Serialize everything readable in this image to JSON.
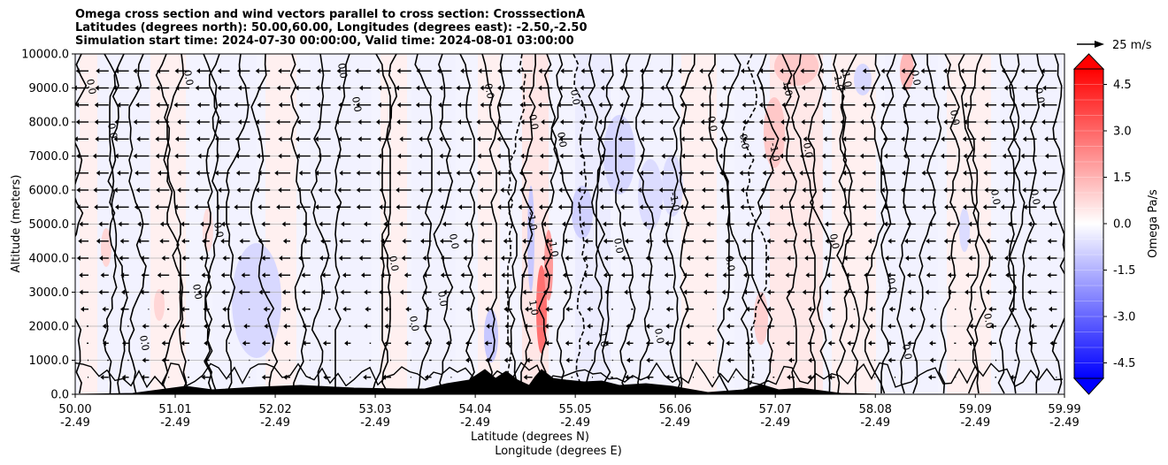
{
  "chart_data": {
    "type": "heatmap",
    "title_lines": [
      "Omega cross section and wind vectors parallel to cross section: CrosssectionA",
      "Latitudes (degrees north): 50.00,60.00, Longitudes (degrees east): -2.50,-2.50",
      "Simulation start time: 2024-07-30 00:00:00, Valid time: 2024-08-01 03:00:00"
    ],
    "ylabel": "Altitude (meters)",
    "xlabel_lat": "Latitude (degrees N)",
    "xlabel_lon": "Longitude (degrees E)",
    "ylim": [
      0,
      10000
    ],
    "xlim": [
      50.0,
      59.99
    ],
    "yticks": [
      "0.0",
      "1000.0",
      "2000.0",
      "3000.0",
      "4000.0",
      "5000.0",
      "6000.0",
      "7000.0",
      "8000.0",
      "9000.0",
      "10000.0"
    ],
    "ytick_values": [
      0,
      1000,
      2000,
      3000,
      4000,
      5000,
      6000,
      7000,
      8000,
      9000,
      10000
    ],
    "xtick_values": [
      50.0,
      51.01,
      52.02,
      53.03,
      54.04,
      55.05,
      56.06,
      57.07,
      58.08,
      59.09,
      59.99
    ],
    "xticks_lat": [
      "50.00",
      "51.01",
      "52.02",
      "53.03",
      "54.04",
      "55.05",
      "56.06",
      "57.07",
      "58.08",
      "59.09",
      "59.99"
    ],
    "xticks_lon": [
      "-2.49",
      "-2.49",
      "-2.49",
      "-2.49",
      "-2.49",
      "-2.49",
      "-2.49",
      "-2.49",
      "-2.49",
      "-2.49",
      "-2.49"
    ],
    "grid": "horizontal",
    "colorbar": {
      "label": "Omega Pa/s",
      "range": [
        -5.0,
        5.0
      ],
      "ticks": [
        "-4.5",
        "-3.0",
        "-1.5",
        "0.0",
        "1.5",
        "3.0",
        "4.5"
      ],
      "tick_values": [
        -4.5,
        -3.0,
        -1.5,
        0.0,
        1.5,
        3.0,
        4.5
      ],
      "cmap": "bwr",
      "extend": "both",
      "low_color": "#0000ff",
      "high_color": "#ff0000"
    },
    "quiver_key": {
      "label": "25 m/s",
      "magnitude": 25
    },
    "contour_labels": [
      "0.0",
      "-1.0",
      "1.0"
    ],
    "terrain_color": "#000000"
  }
}
